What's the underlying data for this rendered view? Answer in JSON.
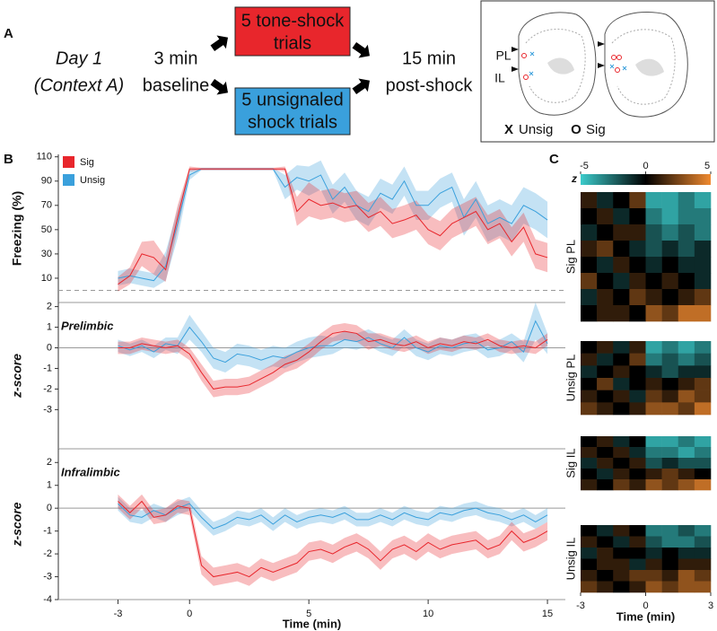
{
  "panels": {
    "a": "A",
    "b": "B",
    "c": "C"
  },
  "diagram": {
    "day": [
      "Day 1",
      "(Context A)"
    ],
    "baseline": [
      "3 min",
      "baseline"
    ],
    "signaled": [
      "5 tone-shock",
      "trials"
    ],
    "unsignaled": [
      "5 unsignaled",
      "shock trials"
    ],
    "post": [
      "15 min",
      "post-shock"
    ],
    "regions": [
      "PL",
      "IL"
    ],
    "legend": [
      {
        "symbol": "X",
        "label": "Unsig",
        "color": "#3aa0dc"
      },
      {
        "symbol": "O",
        "label": "Sig",
        "color": "#e8262c"
      }
    ]
  },
  "chart_data": [
    {
      "type": "line",
      "ylabel": "Freezing (%)",
      "xlim": [
        -5.5,
        15.75
      ],
      "ylim": [
        -10,
        112
      ],
      "yticks": [
        10,
        30,
        50,
        70,
        90,
        110
      ],
      "hline": 0,
      "hline_style": "dashed",
      "legend": true,
      "x": [
        -3,
        -2.5,
        -2,
        -1.5,
        -1,
        -0.5,
        0,
        0.5,
        1,
        1.5,
        2,
        2.5,
        3,
        3.5,
        4,
        4.5,
        5,
        5.5,
        6,
        6.5,
        7,
        7.5,
        8,
        8.5,
        9,
        9.5,
        10,
        10.5,
        11,
        11.5,
        12,
        12.5,
        13,
        13.5,
        14,
        14.5,
        15
      ],
      "series": [
        {
          "name": "Sig",
          "color": "#e8262c",
          "values": [
            5,
            12,
            30,
            27,
            17,
            60,
            100,
            100,
            100,
            100,
            100,
            100,
            100,
            100,
            100,
            65,
            75,
            70,
            72,
            68,
            70,
            60,
            65,
            55,
            58,
            62,
            50,
            45,
            55,
            60,
            65,
            50,
            55,
            40,
            52,
            30,
            27
          ],
          "errors": [
            6,
            7,
            10,
            14,
            10,
            10,
            2,
            1,
            1,
            1,
            1,
            1,
            1,
            1,
            2,
            12,
            14,
            12,
            12,
            12,
            12,
            12,
            12,
            12,
            12,
            12,
            12,
            12,
            12,
            12,
            12,
            12,
            12,
            12,
            12,
            12,
            12
          ]
        },
        {
          "name": "Unsig",
          "color": "#3aa0dc",
          "values": [
            10,
            12,
            10,
            8,
            20,
            55,
            95,
            100,
            100,
            100,
            100,
            100,
            100,
            100,
            85,
            93,
            90,
            95,
            75,
            85,
            70,
            65,
            80,
            75,
            90,
            70,
            70,
            80,
            85,
            60,
            75,
            55,
            60,
            55,
            70,
            65,
            58
          ],
          "errors": [
            6,
            6,
            6,
            6,
            12,
            12,
            4,
            1,
            1,
            1,
            1,
            1,
            1,
            1,
            10,
            10,
            12,
            12,
            12,
            12,
            12,
            12,
            12,
            12,
            12,
            12,
            12,
            12,
            12,
            15,
            15,
            15,
            15,
            15,
            15,
            15,
            15
          ]
        }
      ]
    },
    {
      "type": "line",
      "title": "Prelimbic",
      "ylabel": "z-score",
      "xlim": [
        -5.5,
        15.75
      ],
      "ylim": [
        -4.9,
        2.2
      ],
      "yticks": [
        2,
        1,
        0,
        -1,
        -2,
        -3
      ],
      "hline": 0,
      "hline_style": "solid",
      "x": [
        -3,
        -2.5,
        -2,
        -1.5,
        -1,
        -0.5,
        0,
        0.5,
        1,
        1.5,
        2,
        2.5,
        3,
        3.5,
        4,
        4.5,
        5,
        5.5,
        6,
        6.5,
        7,
        7.5,
        8,
        8.5,
        9,
        9.5,
        10,
        10.5,
        11,
        11.5,
        12,
        12.5,
        13,
        13.5,
        14,
        14.5,
        15
      ],
      "series": [
        {
          "name": "Sig",
          "color": "#e8262c",
          "values": [
            0,
            0,
            0.2,
            0.1,
            0,
            0.1,
            -0.3,
            -1.2,
            -2,
            -1.9,
            -1.9,
            -1.8,
            -1.5,
            -1.2,
            -0.8,
            -0.6,
            -0.2,
            0.3,
            0.7,
            0.8,
            0.7,
            0.3,
            0.4,
            0.2,
            0.1,
            0.3,
            0,
            0.2,
            0.1,
            0.3,
            0.2,
            0.4,
            0.1,
            0,
            0.1,
            0,
            0.4
          ],
          "errors": [
            0.3,
            0.3,
            0.3,
            0.3,
            0.3,
            0.3,
            0.3,
            0.4,
            0.4,
            0.4,
            0.4,
            0.4,
            0.4,
            0.4,
            0.4,
            0.4,
            0.4,
            0.4,
            0.4,
            0.4,
            0.4,
            0.4,
            0.3,
            0.3,
            0.3,
            0.3,
            0.3,
            0.3,
            0.3,
            0.3,
            0.3,
            0.3,
            0.3,
            0.3,
            0.3,
            0.3,
            0.3
          ]
        },
        {
          "name": "Unsig",
          "color": "#3aa0dc",
          "values": [
            0.1,
            -0.1,
            0.1,
            -0.2,
            0.2,
            0.1,
            1,
            0.3,
            -0.5,
            -0.7,
            -0.3,
            -0.4,
            -0.6,
            -0.4,
            -0.5,
            -0.2,
            0,
            0.1,
            0.1,
            0.4,
            0.3,
            0.5,
            0.2,
            0,
            0.5,
            0,
            -0.2,
            0.1,
            0,
            0.2,
            0.3,
            -0.1,
            0,
            0.3,
            -0.2,
            1.3,
            0.2
          ],
          "errors": [
            0.3,
            0.3,
            0.3,
            0.3,
            0.3,
            0.4,
            0.6,
            0.5,
            0.5,
            0.5,
            0.5,
            0.5,
            0.5,
            0.5,
            0.5,
            0.5,
            0.5,
            0.5,
            0.4,
            0.4,
            0.4,
            0.4,
            0.4,
            0.4,
            0.4,
            0.4,
            0.4,
            0.4,
            0.4,
            0.4,
            0.4,
            0.4,
            0.4,
            0.4,
            0.5,
            0.9,
            0.5
          ]
        }
      ]
    },
    {
      "type": "line",
      "title": "Infralimbic",
      "ylabel": "z-score",
      "xlabel": "Time (min)",
      "xlim": [
        -5.5,
        15.75
      ],
      "ylim": [
        -4,
        2.6
      ],
      "yticks": [
        2,
        1,
        0,
        -1,
        -2,
        -3,
        -4
      ],
      "xticks": [
        -3,
        0,
        5,
        10,
        15
      ],
      "hline": 0,
      "hline_style": "solid",
      "x": [
        -3,
        -2.5,
        -2,
        -1.5,
        -1,
        -0.5,
        0,
        0.5,
        1,
        1.5,
        2,
        2.5,
        3,
        3.5,
        4,
        4.5,
        5,
        5.5,
        6,
        6.5,
        7,
        7.5,
        8,
        8.5,
        9,
        9.5,
        10,
        10.5,
        11,
        11.5,
        12,
        12.5,
        13,
        13.5,
        14,
        14.5,
        15
      ],
      "series": [
        {
          "name": "Sig",
          "color": "#e8262c",
          "values": [
            0.3,
            -0.2,
            0.3,
            -0.4,
            -0.3,
            0.1,
            0,
            -2.5,
            -3,
            -2.9,
            -2.8,
            -3,
            -2.6,
            -2.8,
            -2.6,
            -2.4,
            -1.9,
            -1.8,
            -2,
            -1.7,
            -1.5,
            -1.8,
            -2.3,
            -1.8,
            -1.6,
            -1.9,
            -1.5,
            -1.8,
            -1.6,
            -1.5,
            -1.4,
            -1.8,
            -1.6,
            -1,
            -1.5,
            -1.3,
            -1
          ],
          "errors": [
            0.3,
            0.3,
            0.3,
            0.3,
            0.3,
            0.3,
            0.3,
            0.4,
            0.4,
            0.4,
            0.4,
            0.4,
            0.4,
            0.4,
            0.4,
            0.4,
            0.4,
            0.4,
            0.4,
            0.4,
            0.4,
            0.4,
            0.4,
            0.4,
            0.4,
            0.4,
            0.4,
            0.4,
            0.4,
            0.4,
            0.4,
            0.4,
            0.4,
            0.4,
            0.4,
            0.4,
            0.4
          ]
        },
        {
          "name": "Unsig",
          "color": "#3aa0dc",
          "values": [
            0.2,
            -0.3,
            -0.4,
            -0.1,
            -0.3,
            0,
            0.2,
            -0.4,
            -0.9,
            -0.7,
            -0.4,
            -0.5,
            -0.3,
            -0.7,
            -0.3,
            -0.6,
            -0.4,
            -0.3,
            -0.4,
            -0.2,
            -0.5,
            -0.5,
            -0.3,
            -0.5,
            -0.2,
            -0.4,
            -0.5,
            -0.2,
            -0.3,
            -0.1,
            0,
            -0.2,
            -0.3,
            -0.5,
            -0.3,
            -0.6,
            -0.3
          ],
          "errors": [
            0.3,
            0.3,
            0.3,
            0.3,
            0.3,
            0.3,
            0.3,
            0.3,
            0.3,
            0.3,
            0.3,
            0.3,
            0.3,
            0.3,
            0.3,
            0.3,
            0.3,
            0.3,
            0.3,
            0.3,
            0.3,
            0.3,
            0.3,
            0.3,
            0.3,
            0.3,
            0.3,
            0.3,
            0.3,
            0.3,
            0.3,
            0.3,
            0.3,
            0.3,
            0.3,
            0.3,
            0.3
          ]
        }
      ]
    },
    {
      "type": "heatmap",
      "ylabel": "Sig PL",
      "xlim": [
        -3,
        3
      ],
      "zlim": [
        -5,
        5
      ],
      "colorbar": {
        "label": "z",
        "ticks": [
          -5,
          0,
          5
        ]
      },
      "colors": [
        "#3ccccc",
        "#000000",
        "#f08a30"
      ],
      "values": [
        [
          1,
          -1,
          0,
          2,
          -4,
          -4,
          -3,
          -4
        ],
        [
          0,
          1,
          -1,
          0,
          -3,
          -4,
          -3,
          -3
        ],
        [
          -1,
          0,
          1,
          1,
          -2,
          -3,
          -2,
          -3
        ],
        [
          1,
          2,
          0,
          -1,
          -2,
          -1,
          -2,
          -1
        ],
        [
          0,
          -1,
          1,
          0,
          -1,
          0,
          -1,
          -1
        ],
        [
          2,
          0,
          -1,
          1,
          0,
          1,
          0,
          -1
        ],
        [
          -1,
          1,
          0,
          2,
          1,
          0,
          1,
          2
        ],
        [
          0,
          1,
          1,
          0,
          3,
          2,
          4,
          4
        ]
      ]
    },
    {
      "type": "heatmap",
      "ylabel": "Unsig PL",
      "xlim": [
        -3,
        3
      ],
      "values": [
        [
          0,
          1,
          -1,
          1,
          -4,
          -3,
          -4,
          -3
        ],
        [
          1,
          -1,
          0,
          2,
          -3,
          -2,
          -3,
          -2
        ],
        [
          -1,
          0,
          1,
          0,
          -1,
          -2,
          -1,
          -1
        ],
        [
          0,
          2,
          -1,
          0,
          1,
          0,
          1,
          2
        ],
        [
          1,
          0,
          1,
          -1,
          2,
          1,
          3,
          2
        ],
        [
          2,
          1,
          0,
          1,
          3,
          3,
          2,
          4
        ]
      ]
    },
    {
      "type": "heatmap",
      "ylabel": "Sig IL",
      "xlim": [
        -3,
        3
      ],
      "values": [
        [
          0,
          1,
          -1,
          0,
          -4,
          -4,
          -3,
          -4
        ],
        [
          1,
          0,
          1,
          -1,
          -3,
          -3,
          -4,
          -3
        ],
        [
          -1,
          1,
          0,
          1,
          -2,
          -1,
          -2,
          -2
        ],
        [
          0,
          -1,
          1,
          0,
          1,
          2,
          1,
          0
        ],
        [
          1,
          0,
          2,
          1,
          3,
          2,
          3,
          4
        ]
      ]
    },
    {
      "type": "heatmap",
      "ylabel": "Unsig IL",
      "xlim": [
        -3,
        3
      ],
      "xticks": [
        -3,
        0,
        3
      ],
      "xlabel": "Time (min)",
      "values": [
        [
          0,
          -1,
          1,
          0,
          -3,
          -3,
          -2,
          -3
        ],
        [
          1,
          0,
          -1,
          1,
          -2,
          -3,
          -3,
          -2
        ],
        [
          -1,
          1,
          0,
          0,
          -1,
          0,
          -1,
          -1
        ],
        [
          0,
          1,
          1,
          -1,
          1,
          0,
          1,
          1
        ],
        [
          1,
          0,
          1,
          2,
          2,
          1,
          3,
          2
        ],
        [
          2,
          1,
          0,
          1,
          3,
          2,
          3,
          3
        ]
      ]
    }
  ]
}
